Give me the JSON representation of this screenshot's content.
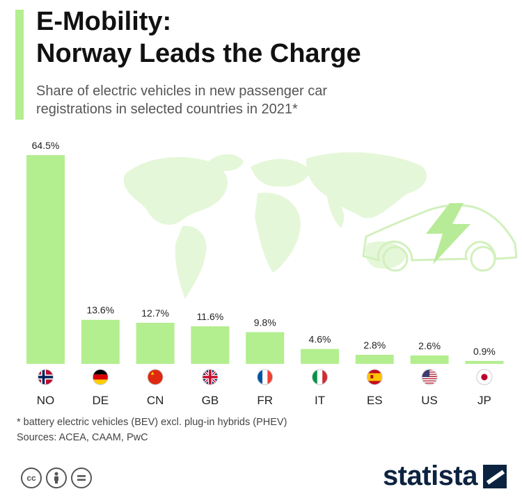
{
  "header": {
    "title_line1": "E-Mobility:",
    "title_line2": "Norway Leads the Charge",
    "subtitle_line1": "Share of electric vehicles in new passenger car",
    "subtitle_line2": "registrations in selected countries in 2021*"
  },
  "chart_data": {
    "type": "bar",
    "title": "E-Mobility: Norway Leads the Charge",
    "subtitle": "Share of electric vehicles in new passenger car registrations in selected countries in 2021*",
    "categories": [
      "NO",
      "DE",
      "CN",
      "GB",
      "FR",
      "IT",
      "ES",
      "US",
      "JP"
    ],
    "values": [
      64.5,
      13.6,
      12.7,
      11.6,
      9.8,
      4.6,
      2.8,
      2.6,
      0.9
    ],
    "value_labels": [
      "64.5%",
      "13.6%",
      "12.7%",
      "11.6%",
      "9.8%",
      "4.6%",
      "2.8%",
      "2.6%",
      "0.9%"
    ],
    "ylim": [
      0,
      64.5
    ],
    "xlabel": "",
    "ylabel": "",
    "grid": false,
    "bar_color": "#b3ee8f"
  },
  "footer": {
    "footnote": "* battery electric vehicles (BEV) excl. plug-in hybrids (PHEV)",
    "sources": "Sources: ACEA, CAAM, PwC",
    "brand": "statista",
    "license_icons": [
      "cc",
      "by",
      "nd"
    ]
  },
  "colors": {
    "accent": "#b3ee8f",
    "map": "#e5f7d9",
    "brand": "#0c2340"
  }
}
